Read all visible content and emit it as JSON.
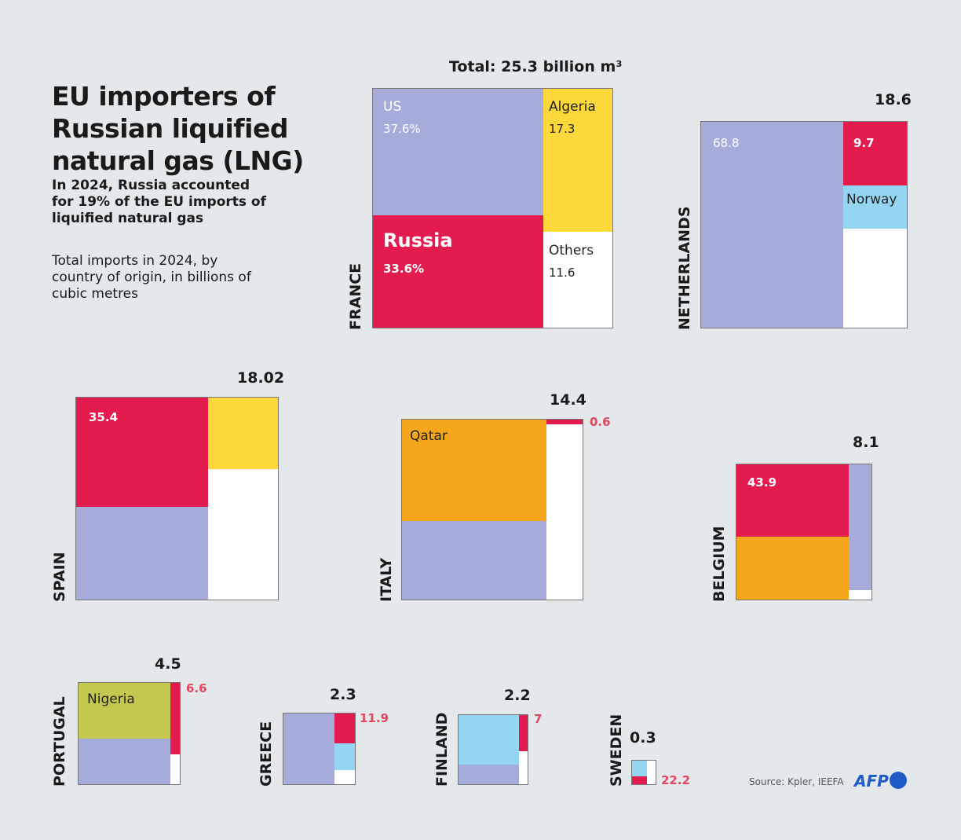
{
  "title": "EU importers of Russian liquified natural gas (LNG)",
  "subtitle": "In 2024, Russia accounted for 19% of the EU imports of liquified natural gas",
  "description": "Total imports in 2024, by country of origin, in billions of cubic metres",
  "source": "Source: Kpler, IEEFA",
  "logo": "AFP",
  "colors": {
    "US": "#a5acd9",
    "Russia": "#e31b4f",
    "Algeria": "#fdd83a",
    "Others": "#ffffff",
    "Norway": "#94d5f2",
    "Qatar": "#f5a61a",
    "Nigeria": "#c5c84f"
  },
  "chart_data": {
    "type": "treemap",
    "countries": [
      {
        "name": "FRANCE",
        "total": "Total: 25.3 billion m³",
        "segments": [
          {
            "origin": "US",
            "label": "US",
            "value": "37.6%"
          },
          {
            "origin": "Russia",
            "label": "Russia",
            "value": "33.6%"
          },
          {
            "origin": "Algeria",
            "label": "Algeria",
            "value": "17.3"
          },
          {
            "origin": "Others",
            "label": "Others",
            "value": "11.6"
          }
        ]
      },
      {
        "name": "NETHERLANDS",
        "total": "18.6",
        "segments": [
          {
            "origin": "US",
            "value": "68.8"
          },
          {
            "origin": "Russia",
            "value": "9.7"
          },
          {
            "origin": "Norway",
            "label": "Norway"
          },
          {
            "origin": "Others"
          }
        ]
      },
      {
        "name": "SPAIN",
        "total": "18.02",
        "segments": [
          {
            "origin": "Russia",
            "value": "35.4"
          },
          {
            "origin": "US"
          },
          {
            "origin": "Algeria"
          },
          {
            "origin": "Others"
          }
        ]
      },
      {
        "name": "ITALY",
        "total": "14.4",
        "segments": [
          {
            "origin": "Qatar",
            "label": "Qatar"
          },
          {
            "origin": "US"
          },
          {
            "origin": "Russia",
            "value": "0.6"
          },
          {
            "origin": "Others"
          }
        ]
      },
      {
        "name": "BELGIUM",
        "total": "8.1",
        "segments": [
          {
            "origin": "Russia",
            "value": "43.9"
          },
          {
            "origin": "Qatar"
          },
          {
            "origin": "US"
          },
          {
            "origin": "Others"
          }
        ]
      },
      {
        "name": "PORTUGAL",
        "total": "4.5",
        "segments": [
          {
            "origin": "Nigeria",
            "label": "Nigeria"
          },
          {
            "origin": "US"
          },
          {
            "origin": "Russia",
            "value": "6.6"
          },
          {
            "origin": "Others"
          }
        ]
      },
      {
        "name": "GREECE",
        "total": "2.3",
        "segments": [
          {
            "origin": "US"
          },
          {
            "origin": "Russia",
            "value": "11.9"
          },
          {
            "origin": "Norway"
          },
          {
            "origin": "Others"
          }
        ]
      },
      {
        "name": "FINLAND",
        "total": "2.2",
        "segments": [
          {
            "origin": "Norway"
          },
          {
            "origin": "US"
          },
          {
            "origin": "Russia",
            "value": "7"
          },
          {
            "origin": "Others"
          }
        ]
      },
      {
        "name": "SWEDEN",
        "total": "0.3",
        "segments": [
          {
            "origin": "Norway"
          },
          {
            "origin": "Russia",
            "value": "22.2"
          },
          {
            "origin": "Others"
          }
        ]
      }
    ]
  }
}
